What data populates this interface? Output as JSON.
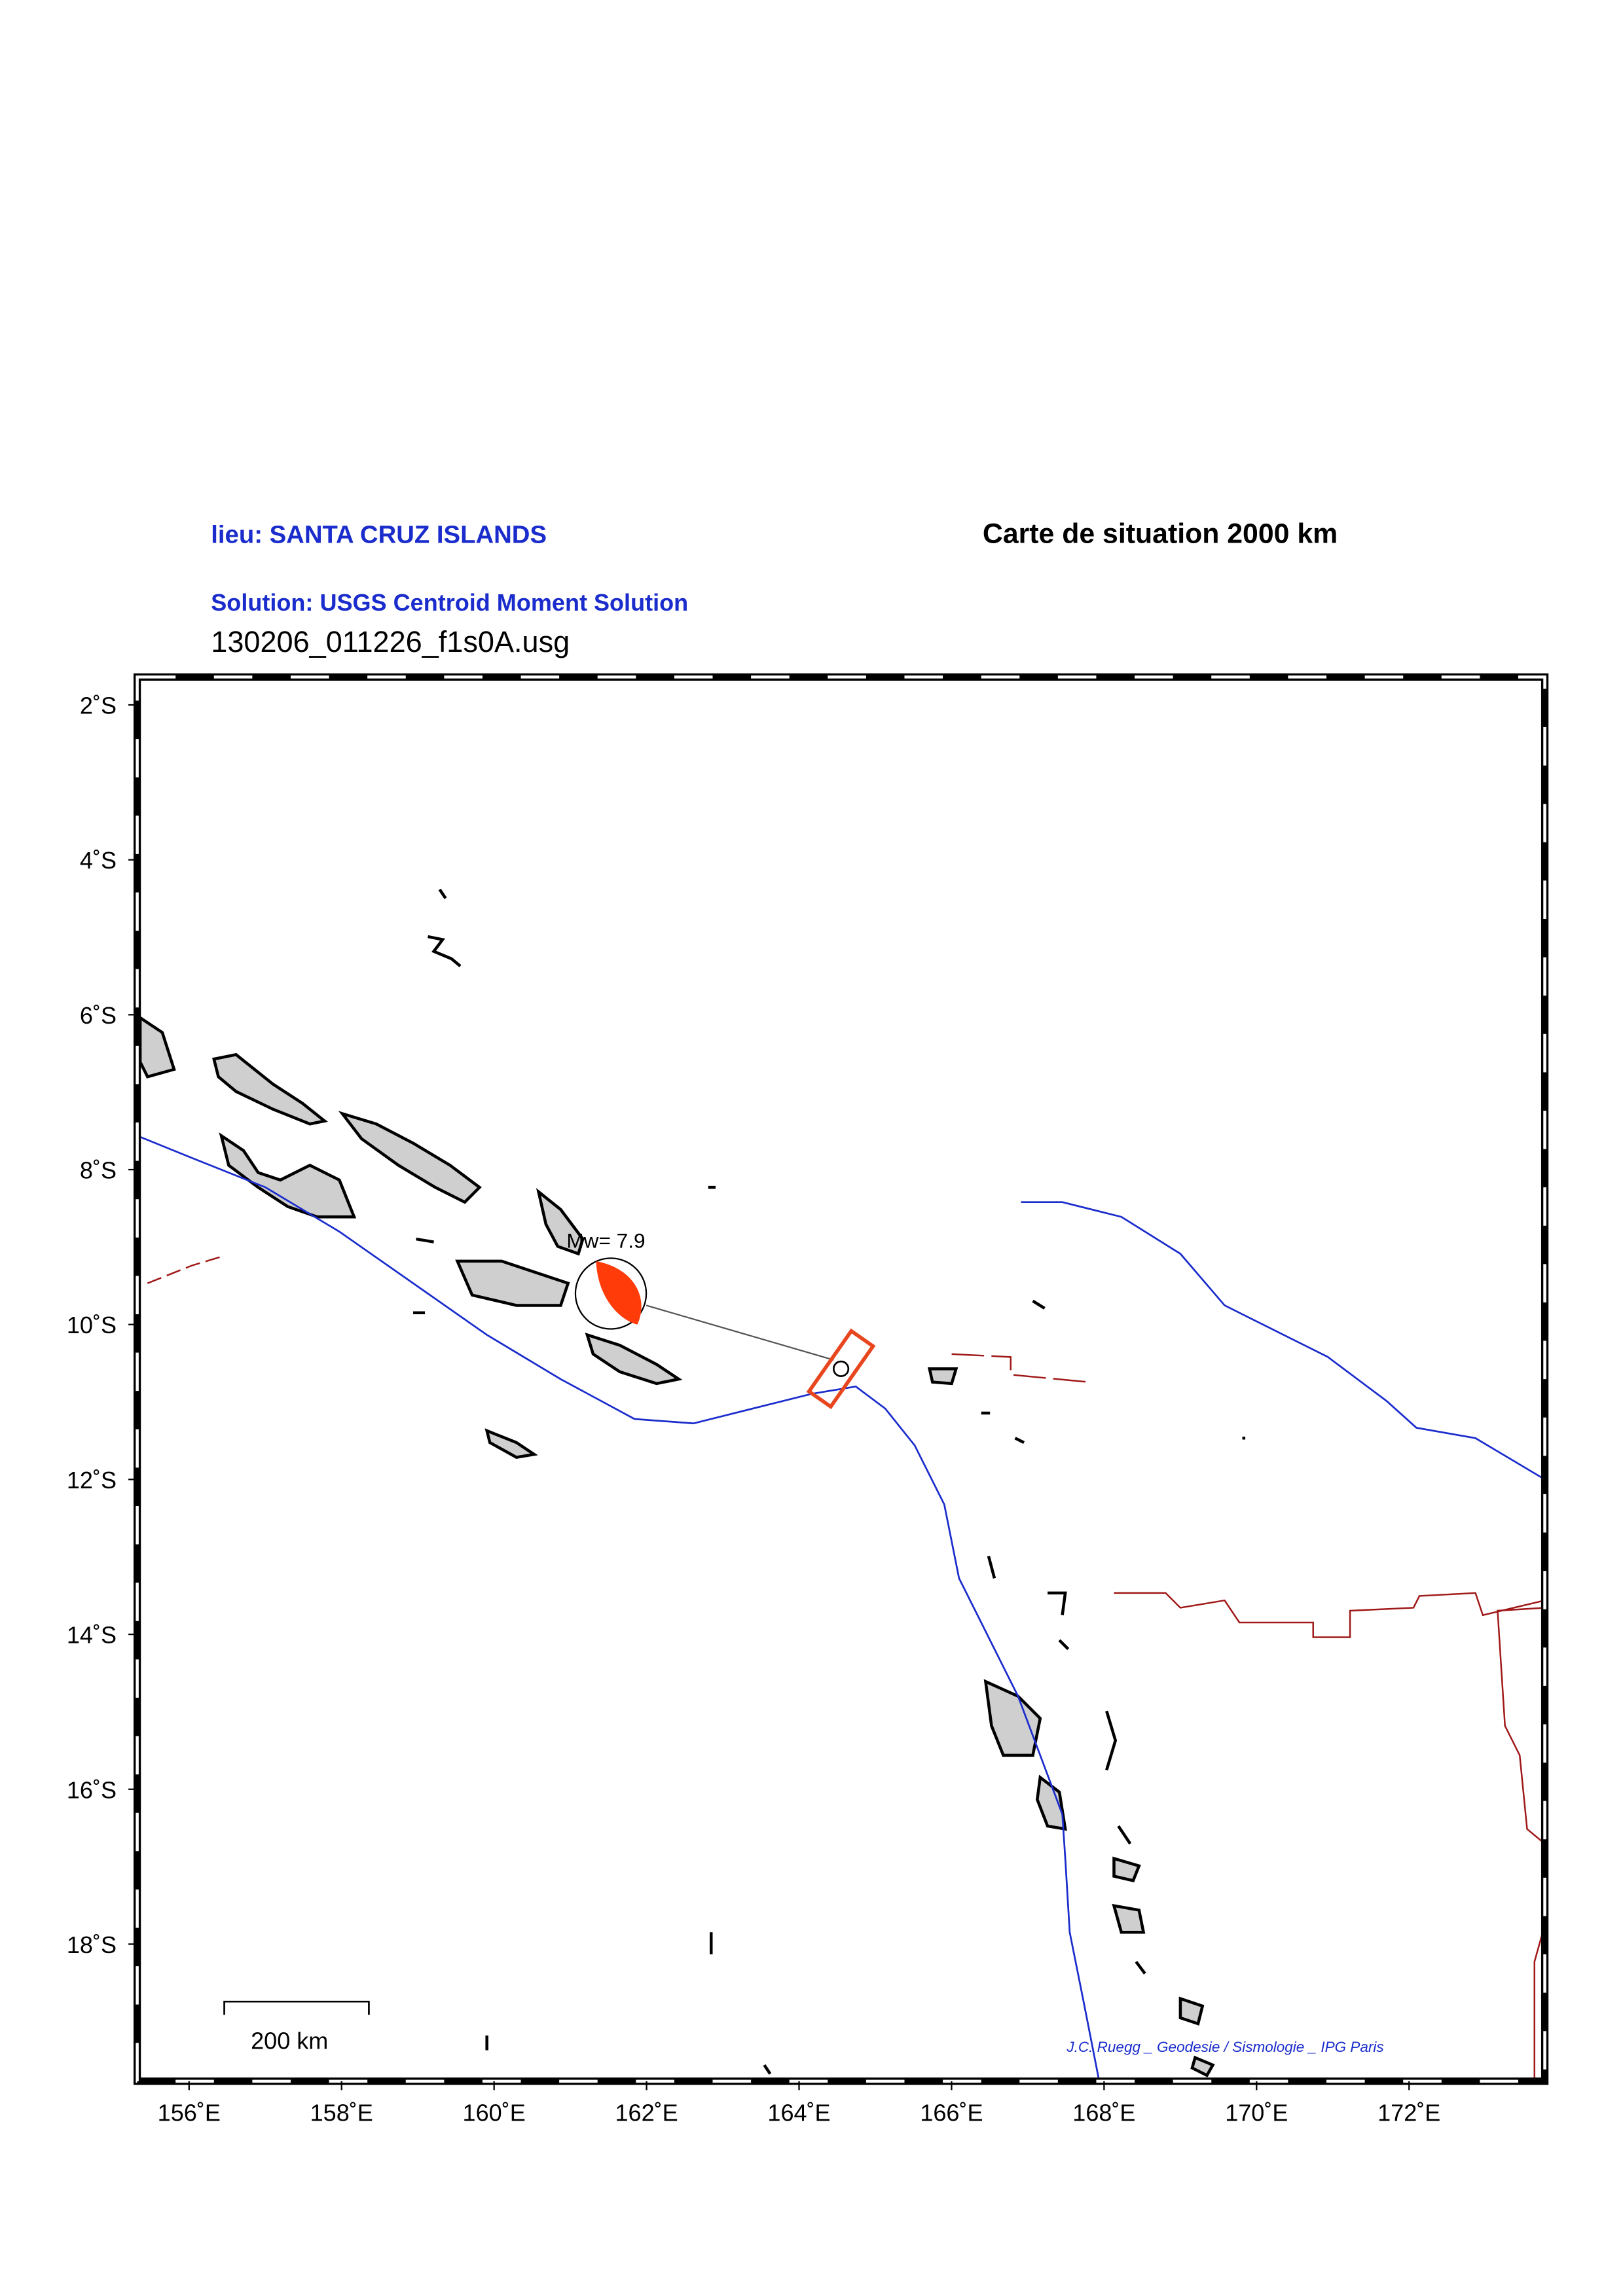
{
  "header": {
    "location": "lieu: SANTA CRUZ ISLANDS",
    "map_title": "Carte de situation 2000 km",
    "solution": "Solution: USGS Centroid Moment Solution",
    "file": "130206_011226_f1s0A.usg"
  },
  "map": {
    "xlim": [
      155.32,
      173.78
    ],
    "ylim": [
      -19.77,
      -1.64
    ],
    "xticks": [
      {
        "value": 156,
        "label": "156˚E"
      },
      {
        "value": 158,
        "label": "158˚E"
      },
      {
        "value": 160,
        "label": "160˚E"
      },
      {
        "value": 162,
        "label": "162˚E"
      },
      {
        "value": 164,
        "label": "164˚E"
      },
      {
        "value": 166,
        "label": "166˚E"
      },
      {
        "value": 168,
        "label": "168˚E"
      },
      {
        "value": 170,
        "label": "170˚E"
      },
      {
        "value": 172,
        "label": "172˚E"
      }
    ],
    "yticks": [
      {
        "value": -2,
        "label": "2˚S"
      },
      {
        "value": -4,
        "label": "4˚S"
      },
      {
        "value": -6,
        "label": "6˚S"
      },
      {
        "value": -8,
        "label": "8˚S"
      },
      {
        "value": -10,
        "label": "10˚S"
      },
      {
        "value": -12,
        "label": "12˚S"
      },
      {
        "value": -14,
        "label": "14˚S"
      },
      {
        "value": -16,
        "label": "16˚S"
      },
      {
        "value": -18,
        "label": "18˚S"
      }
    ],
    "magnitude_label": "Mw= 7.9",
    "scale_bar": "200 km",
    "credit": "J.C. Ruegg _ Geodesie / Sismologie _ IPG Paris"
  }
}
